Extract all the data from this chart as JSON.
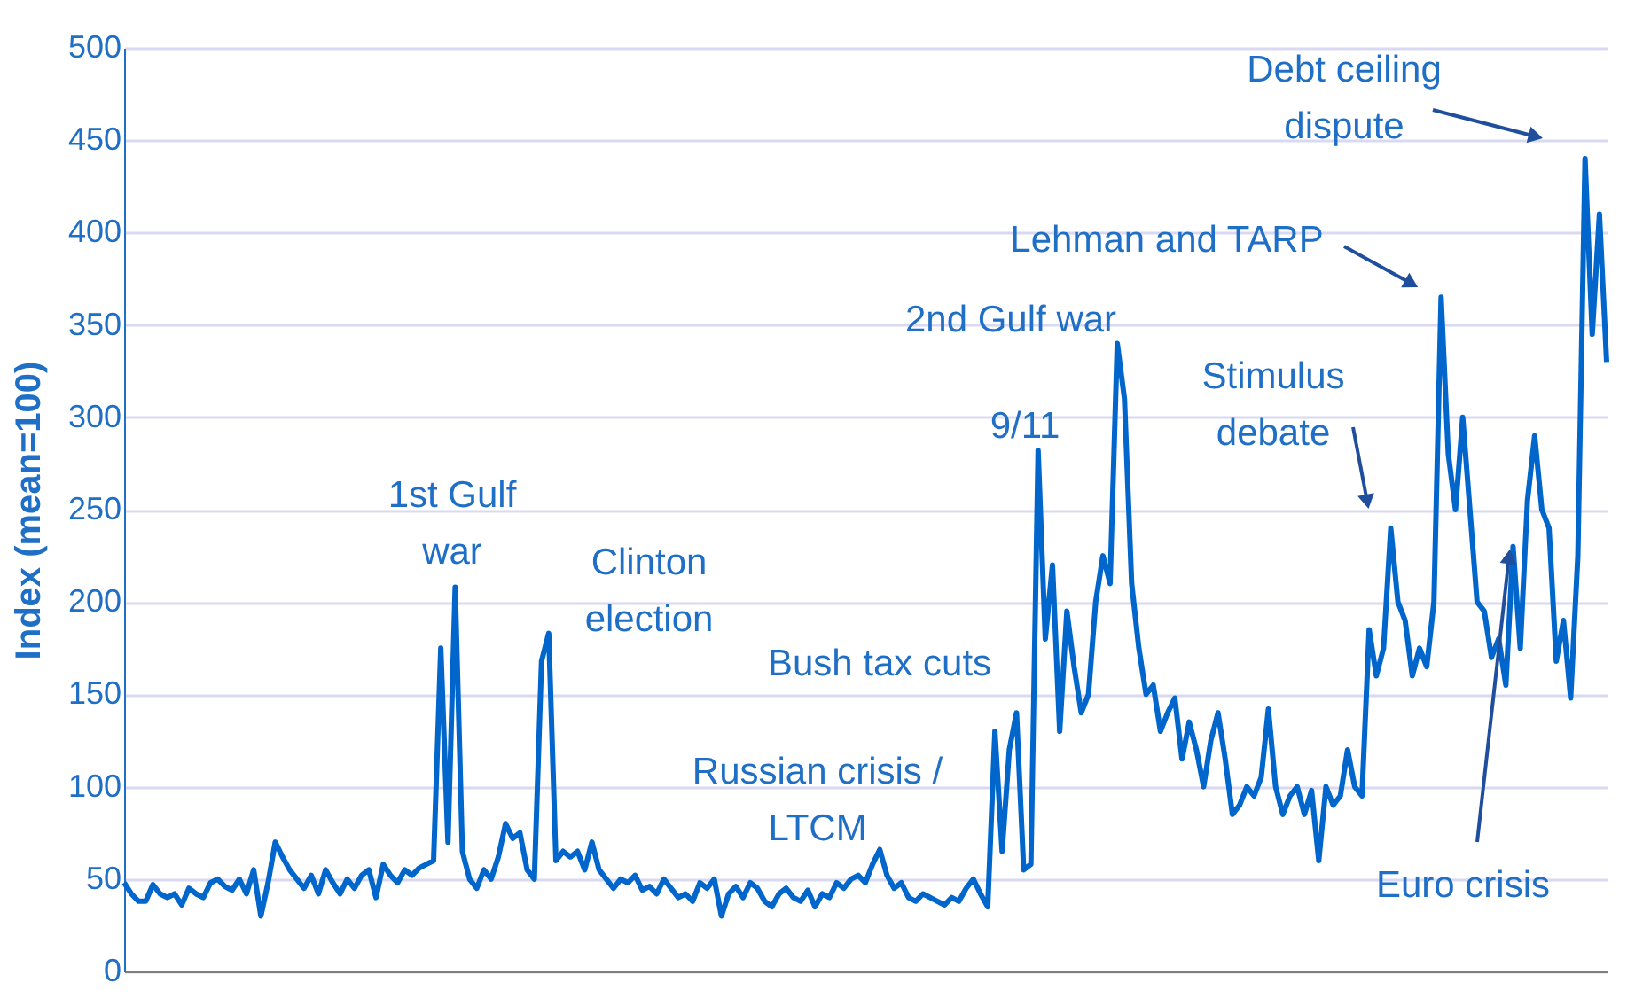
{
  "chart_data": {
    "type": "line",
    "ylabel": "Index (mean=100)",
    "ylim": [
      0,
      500
    ],
    "yticks": [
      0,
      50,
      100,
      150,
      200,
      250,
      300,
      350,
      400,
      450,
      500
    ],
    "grid": "y",
    "tick_labels": "y",
    "line_style": "solid",
    "categories": [
      null,
      null,
      null,
      null,
      null,
      null,
      null,
      null,
      null,
      null,
      null,
      null,
      null,
      null,
      null,
      null,
      null,
      null,
      null,
      null,
      null,
      null,
      null,
      null,
      null,
      null,
      null,
      null,
      null,
      null,
      null,
      null,
      null,
      null,
      null,
      null,
      null,
      null,
      null,
      null,
      null,
      null,
      null,
      null,
      null,
      null,
      null,
      null,
      null,
      null,
      null,
      null,
      null,
      null,
      null,
      null,
      null,
      null,
      null,
      null,
      null,
      null,
      null,
      null,
      null,
      null,
      null,
      null,
      null,
      null,
      null,
      null,
      null,
      null,
      null,
      null,
      null,
      null,
      null,
      null,
      null,
      null,
      null,
      null,
      null,
      null,
      null,
      null,
      null,
      null,
      null,
      null,
      null,
      null,
      null,
      null,
      null,
      null,
      null,
      null,
      null,
      null,
      null,
      null,
      null,
      null,
      null,
      null,
      null,
      null,
      null,
      null,
      null,
      null,
      null,
      null,
      null,
      null,
      null,
      null,
      null,
      null,
      null,
      null,
      null,
      null,
      null,
      null,
      null,
      null,
      null,
      null,
      null,
      null,
      null,
      null,
      null,
      null,
      null,
      null,
      null,
      null,
      null,
      null,
      null,
      null,
      null,
      null,
      null,
      null,
      null,
      null,
      null,
      null,
      null,
      null,
      null,
      null,
      null,
      null,
      null,
      null,
      null,
      null,
      null,
      null,
      null,
      null,
      null,
      null,
      null,
      null,
      null,
      null,
      null,
      null,
      null,
      null,
      null,
      null,
      null,
      null,
      null,
      null,
      null,
      null,
      null,
      null,
      null,
      null,
      null,
      null,
      null,
      null,
      null,
      null,
      null,
      null,
      null,
      null,
      null,
      null,
      null,
      null,
      null,
      null,
      null
    ],
    "series": [
      {
        "color": "#0066cc",
        "values": [
          48,
          42,
          38,
          38,
          47,
          42,
          40,
          42,
          36,
          45,
          42,
          40,
          48,
          50,
          46,
          44,
          50,
          42,
          55,
          30,
          48,
          70,
          62,
          55,
          50,
          45,
          52,
          42,
          55,
          48,
          42,
          50,
          45,
          52,
          55,
          40,
          58,
          52,
          48,
          55,
          52,
          56,
          58,
          60,
          175,
          70,
          208,
          65,
          50,
          45,
          55,
          50,
          62,
          80,
          72,
          75,
          55,
          50,
          168,
          183,
          60,
          65,
          62,
          65,
          55,
          70,
          55,
          50,
          45,
          50,
          48,
          52,
          44,
          46,
          42,
          50,
          45,
          40,
          42,
          38,
          48,
          45,
          50,
          30,
          42,
          46,
          40,
          48,
          45,
          38,
          35,
          42,
          45,
          40,
          38,
          44,
          35,
          42,
          40,
          48,
          45,
          50,
          52,
          48,
          58,
          66,
          52,
          45,
          48,
          40,
          38,
          42,
          40,
          38,
          36,
          40,
          38,
          45,
          50,
          42,
          35,
          130,
          65,
          120,
          140,
          55,
          58,
          282,
          180,
          220,
          130,
          195,
          165,
          140,
          150,
          200,
          225,
          210,
          340,
          310,
          210,
          175,
          150,
          155,
          130,
          140,
          148,
          115,
          135,
          120,
          100,
          125,
          140,
          115,
          85,
          90,
          100,
          95,
          105,
          142,
          100,
          85,
          95,
          100,
          85,
          98,
          60,
          100,
          90,
          95,
          120,
          100,
          95,
          185,
          160,
          175,
          240,
          200,
          190,
          160,
          175,
          165,
          200,
          365,
          280,
          250,
          300,
          250,
          200,
          195,
          170,
          180,
          155,
          230,
          175,
          255,
          290,
          250,
          240,
          168,
          190,
          148,
          225,
          440,
          345,
          410,
          330
        ]
      }
    ],
    "annotations": [
      "1st Gulf war",
      "Clinton election",
      "Russian crisis / LTCM",
      "Bush tax cuts",
      "9/11",
      "2nd Gulf war",
      "Stimulus debate",
      "Lehman and TARP",
      "Debt ceiling dispute",
      "Euro crisis"
    ]
  }
}
